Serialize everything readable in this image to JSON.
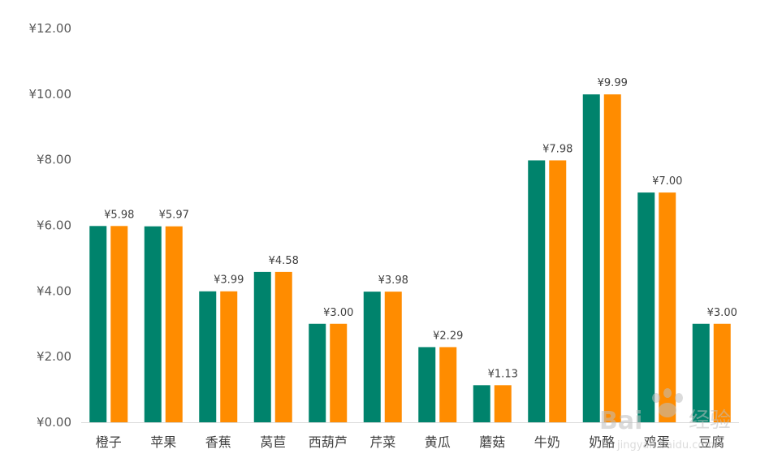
{
  "chart_data": {
    "type": "bar",
    "categories": [
      "橙子",
      "苹果",
      "香蕉",
      "莴苣",
      "西葫芦",
      "芹菜",
      "黄瓜",
      "蘑菇",
      "牛奶",
      "奶酪",
      "鸡蛋",
      "豆腐"
    ],
    "series": [
      {
        "color": "#00836c",
        "values": [
          5.98,
          5.97,
          3.99,
          4.58,
          3.0,
          3.98,
          2.29,
          1.13,
          7.98,
          9.99,
          7.0,
          3.0
        ]
      },
      {
        "color": "#ff8c00",
        "values": [
          5.98,
          5.97,
          3.99,
          4.58,
          3.0,
          3.98,
          2.29,
          1.13,
          7.98,
          9.99,
          7.0,
          3.0
        ]
      }
    ],
    "data_labels": [
      "¥5.98",
      "¥5.97",
      "¥3.99",
      "¥4.58",
      "¥3.00",
      "¥3.98",
      "¥2.29",
      "¥1.13",
      "¥7.98",
      "¥9.99",
      "¥7.00",
      "¥3.00"
    ],
    "y_ticks": [
      "¥0.00",
      "¥2.00",
      "¥4.00",
      "¥6.00",
      "¥8.00",
      "¥10.00",
      "¥12.00"
    ],
    "ylim": [
      0,
      12
    ],
    "grid": false,
    "legend": "none"
  },
  "watermark": {
    "brand": "Bai",
    "brand_tail": "经验",
    "url": "jingyan.baidu.com"
  }
}
